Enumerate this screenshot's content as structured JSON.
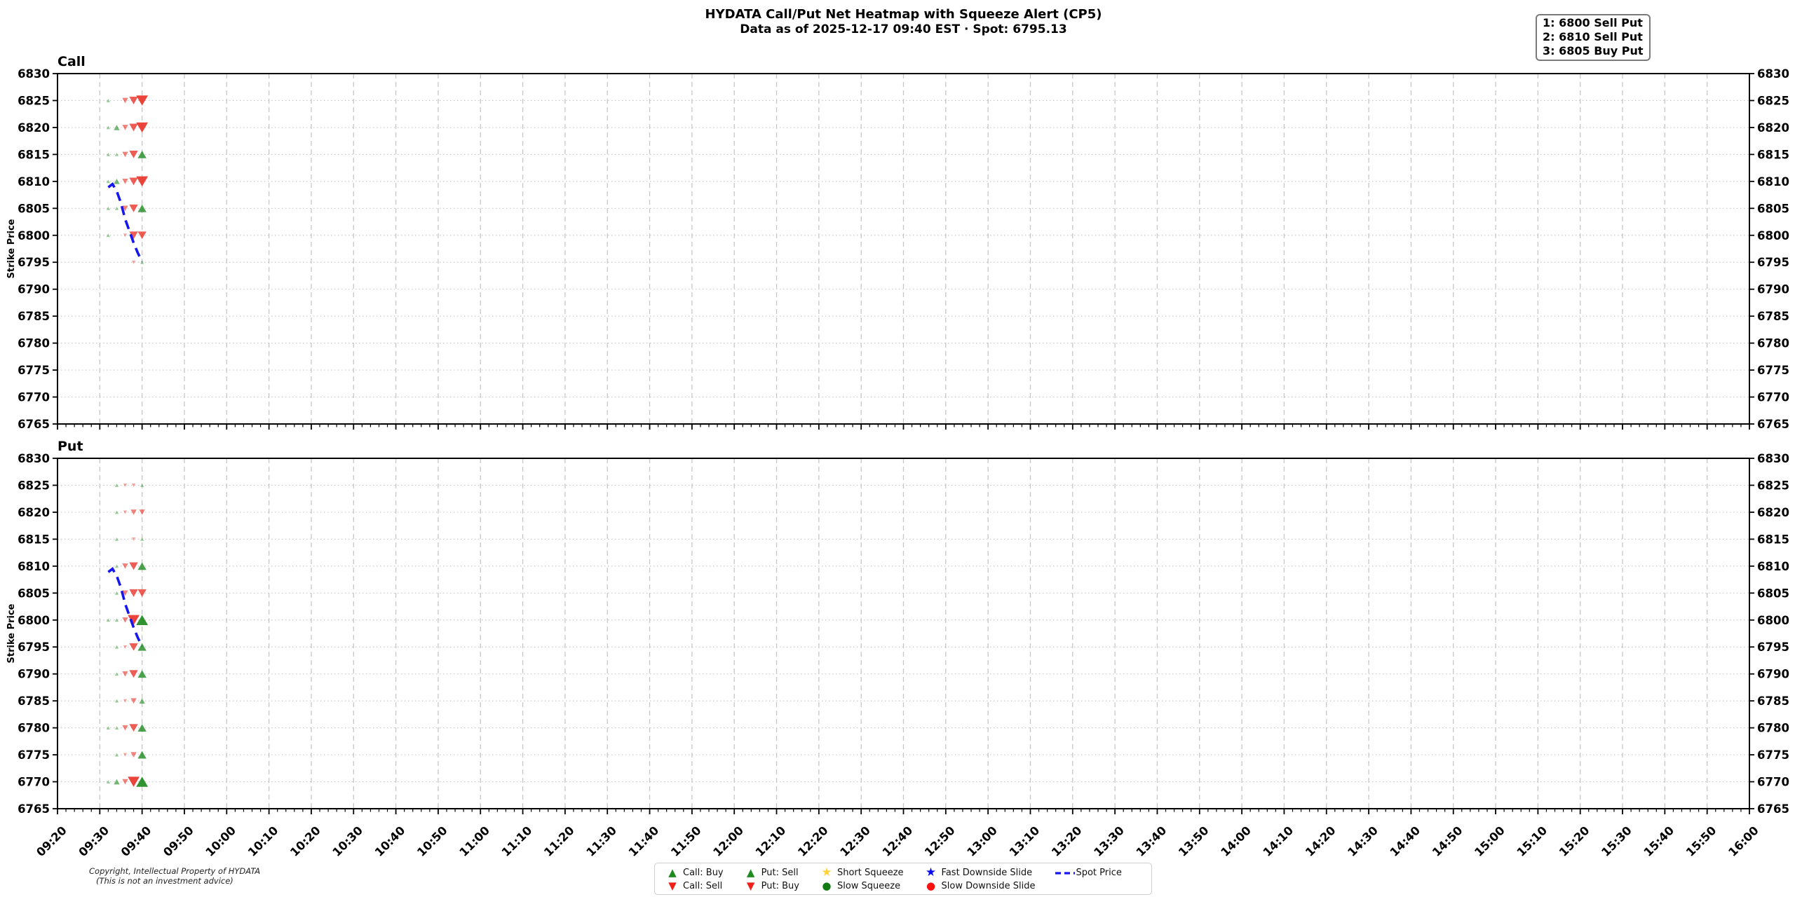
{
  "header": {
    "title": "HYDATA Call/Put Net Heatmap with Squeeze Alert (CP5)",
    "subtitle": "Data as of 2025-12-17 09:40 EST · Spot: 6795.13"
  },
  "annotation_box": {
    "lines": [
      "1: 6800 Sell Put",
      "2: 6810 Sell Put",
      "3: 6805 Buy Put"
    ]
  },
  "footer": {
    "copyright_line1": "Copyright, Intellectual Property of HYDATA",
    "copyright_line2": "(This is not an investment advice)"
  },
  "colors": {
    "green": "#1f8b1f",
    "red": "#e8342a",
    "spot_blue": "#1617ee",
    "gold": "#ffd43b",
    "dark_green": "#127a12",
    "bright_red": "#fb0f0f",
    "bright_blue": "#0a0af0",
    "grid_dash": "#c7c7c7",
    "grid_dot": "#c9c9c9",
    "spine": "#000000"
  },
  "legend": {
    "columns": [
      {
        "items": [
          {
            "marker": "triangle-up",
            "color": "#1f8b1f",
            "label": "Call: Buy"
          },
          {
            "marker": "triangle-down",
            "color": "#ee2019",
            "label": "Call: Sell"
          }
        ]
      },
      {
        "items": [
          {
            "marker": "triangle-up",
            "color": "#1f8b1f",
            "label": "Put: Sell"
          },
          {
            "marker": "triangle-down",
            "color": "#ee2019",
            "label": "Put: Buy"
          }
        ]
      },
      {
        "items": [
          {
            "marker": "star",
            "color": "#ffd43b",
            "label": "Short Squeeze"
          },
          {
            "marker": "circle",
            "color": "#127a12",
            "label": "Slow Squeeze"
          }
        ]
      },
      {
        "items": [
          {
            "marker": "star",
            "color": "#0a0af0",
            "label": "Fast Downside Slide"
          },
          {
            "marker": "circle",
            "color": "#fb0f0f",
            "label": "Slow Downside Slide"
          }
        ]
      },
      {
        "items": [
          {
            "marker": "dashed-line",
            "color": "#1617ee",
            "label": "Spot Price"
          }
        ]
      }
    ]
  },
  "chart_data": [
    {
      "type": "scatter",
      "title": "Call",
      "ylabel": "Strike Price",
      "ylim": [
        6765,
        6830
      ],
      "y_ticks": [
        6765,
        6770,
        6775,
        6780,
        6785,
        6790,
        6795,
        6800,
        6805,
        6810,
        6815,
        6820,
        6825,
        6830
      ],
      "x_range": [
        "09:20",
        "16:00"
      ],
      "x_tick_interval_min": 10,
      "x_minor_interval_min": 2,
      "grid": true,
      "x_ticks": [
        "09:20",
        "09:30",
        "09:40",
        "09:50",
        "10:00",
        "10:10",
        "10:20",
        "10:30",
        "10:40",
        "10:50",
        "11:00",
        "11:10",
        "11:20",
        "11:30",
        "11:40",
        "11:50",
        "12:00",
        "12:10",
        "12:20",
        "12:30",
        "12:40",
        "12:50",
        "13:00",
        "13:10",
        "13:20",
        "13:30",
        "13:40",
        "13:50",
        "14:00",
        "14:10",
        "14:20",
        "14:30",
        "14:40",
        "14:50",
        "15:00",
        "15:10",
        "15:20",
        "15:30",
        "15:40",
        "15:50",
        "16:00"
      ],
      "series": [
        {
          "name": "Call: Buy",
          "type": "scatter",
          "marker": "triangle-up",
          "color": "#1f8b1f",
          "points": [
            {
              "t": "09:32",
              "strike": 6825,
              "size": 1
            },
            {
              "t": "09:32",
              "strike": 6820,
              "size": 1
            },
            {
              "t": "09:34",
              "strike": 6820,
              "size": 2
            },
            {
              "t": "09:32",
              "strike": 6815,
              "size": 1
            },
            {
              "t": "09:34",
              "strike": 6815,
              "size": 1
            },
            {
              "t": "09:40",
              "strike": 6815,
              "size": 3
            },
            {
              "t": "09:32",
              "strike": 6810,
              "size": 1
            },
            {
              "t": "09:34",
              "strike": 6810,
              "size": 2
            },
            {
              "t": "09:32",
              "strike": 6805,
              "size": 1
            },
            {
              "t": "09:34",
              "strike": 6805,
              "size": 1
            },
            {
              "t": "09:40",
              "strike": 6805,
              "size": 3
            },
            {
              "t": "09:32",
              "strike": 6800,
              "size": 1
            },
            {
              "t": "09:40",
              "strike": 6795,
              "size": 1
            }
          ]
        },
        {
          "name": "Call: Sell",
          "type": "scatter",
          "marker": "triangle-down",
          "color": "#e8342a",
          "points": [
            {
              "t": "09:36",
              "strike": 6825,
              "size": 2
            },
            {
              "t": "09:38",
              "strike": 6825,
              "size": 3
            },
            {
              "t": "09:40",
              "strike": 6825,
              "size": 4
            },
            {
              "t": "09:36",
              "strike": 6820,
              "size": 2
            },
            {
              "t": "09:38",
              "strike": 6820,
              "size": 3
            },
            {
              "t": "09:40",
              "strike": 6820,
              "size": 4
            },
            {
              "t": "09:36",
              "strike": 6815,
              "size": 2
            },
            {
              "t": "09:38",
              "strike": 6815,
              "size": 3
            },
            {
              "t": "09:36",
              "strike": 6810,
              "size": 2
            },
            {
              "t": "09:38",
              "strike": 6810,
              "size": 3
            },
            {
              "t": "09:40",
              "strike": 6810,
              "size": 4
            },
            {
              "t": "09:36",
              "strike": 6805,
              "size": 2
            },
            {
              "t": "09:38",
              "strike": 6805,
              "size": 3
            },
            {
              "t": "09:36",
              "strike": 6800,
              "size": 1
            },
            {
              "t": "09:38",
              "strike": 6800,
              "size": 3
            },
            {
              "t": "09:40",
              "strike": 6800,
              "size": 3
            },
            {
              "t": "09:38",
              "strike": 6795,
              "size": 1
            }
          ]
        },
        {
          "name": "Spot Price",
          "type": "line",
          "dashed": true,
          "color": "#1617ee",
          "points": [
            {
              "t": "09:32",
              "price": 6808.9
            },
            {
              "t": "09:33",
              "price": 6809.5
            },
            {
              "t": "09:34",
              "price": 6808.2
            },
            {
              "t": "09:35",
              "price": 6806.0
            },
            {
              "t": "09:36",
              "price": 6803.0
            },
            {
              "t": "09:37",
              "price": 6800.8
            },
            {
              "t": "09:38",
              "price": 6798.6
            },
            {
              "t": "09:39",
              "price": 6796.7
            },
            {
              "t": "09:40",
              "price": 6795.13
            }
          ]
        }
      ]
    },
    {
      "type": "scatter",
      "title": "Put",
      "ylabel": "Strike Price",
      "ylim": [
        6765,
        6830
      ],
      "y_ticks": [
        6765,
        6770,
        6775,
        6780,
        6785,
        6790,
        6795,
        6800,
        6805,
        6810,
        6815,
        6820,
        6825,
        6830
      ],
      "x_range": [
        "09:20",
        "16:00"
      ],
      "x_tick_interval_min": 10,
      "x_minor_interval_min": 2,
      "grid": true,
      "x_ticks": [
        "09:20",
        "09:30",
        "09:40",
        "09:50",
        "10:00",
        "10:10",
        "10:20",
        "10:30",
        "10:40",
        "10:50",
        "11:00",
        "11:10",
        "11:20",
        "11:30",
        "11:40",
        "11:50",
        "12:00",
        "12:10",
        "12:20",
        "12:30",
        "12:40",
        "12:50",
        "13:00",
        "13:10",
        "13:20",
        "13:30",
        "13:40",
        "13:50",
        "14:00",
        "14:10",
        "14:20",
        "14:30",
        "14:40",
        "14:50",
        "15:00",
        "15:10",
        "15:20",
        "15:30",
        "15:40",
        "15:50",
        "16:00"
      ],
      "series": [
        {
          "name": "Put: Sell",
          "type": "scatter",
          "marker": "triangle-up",
          "color": "#1f8b1f",
          "points": [
            {
              "t": "09:34",
              "strike": 6825,
              "size": 1
            },
            {
              "t": "09:40",
              "strike": 6825,
              "size": 1
            },
            {
              "t": "09:34",
              "strike": 6820,
              "size": 1
            },
            {
              "t": "09:34",
              "strike": 6815,
              "size": 1
            },
            {
              "t": "09:40",
              "strike": 6815,
              "size": 1
            },
            {
              "t": "09:34",
              "strike": 6810,
              "size": 1
            },
            {
              "t": "09:40",
              "strike": 6810,
              "size": 3
            },
            {
              "t": "09:34",
              "strike": 6805,
              "size": 1
            },
            {
              "t": "09:32",
              "strike": 6800,
              "size": 1
            },
            {
              "t": "09:34",
              "strike": 6800,
              "size": 1
            },
            {
              "t": "09:40",
              "strike": 6800,
              "size": 4
            },
            {
              "t": "09:34",
              "strike": 6795,
              "size": 1
            },
            {
              "t": "09:40",
              "strike": 6795,
              "size": 3
            },
            {
              "t": "09:34",
              "strike": 6790,
              "size": 1
            },
            {
              "t": "09:40",
              "strike": 6790,
              "size": 3
            },
            {
              "t": "09:34",
              "strike": 6785,
              "size": 1
            },
            {
              "t": "09:40",
              "strike": 6785,
              "size": 2
            },
            {
              "t": "09:32",
              "strike": 6780,
              "size": 1
            },
            {
              "t": "09:34",
              "strike": 6780,
              "size": 1
            },
            {
              "t": "09:40",
              "strike": 6780,
              "size": 3
            },
            {
              "t": "09:34",
              "strike": 6775,
              "size": 1
            },
            {
              "t": "09:40",
              "strike": 6775,
              "size": 3
            },
            {
              "t": "09:32",
              "strike": 6770,
              "size": 1
            },
            {
              "t": "09:34",
              "strike": 6770,
              "size": 2
            },
            {
              "t": "09:40",
              "strike": 6770,
              "size": 4
            }
          ]
        },
        {
          "name": "Put: Buy",
          "type": "scatter",
          "marker": "triangle-down",
          "color": "#e8342a",
          "points": [
            {
              "t": "09:36",
              "strike": 6825,
              "size": 1
            },
            {
              "t": "09:38",
              "strike": 6825,
              "size": 1
            },
            {
              "t": "09:36",
              "strike": 6820,
              "size": 1
            },
            {
              "t": "09:38",
              "strike": 6820,
              "size": 2
            },
            {
              "t": "09:40",
              "strike": 6820,
              "size": 2
            },
            {
              "t": "09:38",
              "strike": 6815,
              "size": 1
            },
            {
              "t": "09:36",
              "strike": 6810,
              "size": 2
            },
            {
              "t": "09:38",
              "strike": 6810,
              "size": 3
            },
            {
              "t": "09:36",
              "strike": 6805,
              "size": 2
            },
            {
              "t": "09:38",
              "strike": 6805,
              "size": 3
            },
            {
              "t": "09:40",
              "strike": 6805,
              "size": 3
            },
            {
              "t": "09:36",
              "strike": 6800,
              "size": 2
            },
            {
              "t": "09:38",
              "strike": 6800,
              "size": 4
            },
            {
              "t": "09:36",
              "strike": 6795,
              "size": 1
            },
            {
              "t": "09:38",
              "strike": 6795,
              "size": 3
            },
            {
              "t": "09:36",
              "strike": 6790,
              "size": 2
            },
            {
              "t": "09:38",
              "strike": 6790,
              "size": 3
            },
            {
              "t": "09:36",
              "strike": 6785,
              "size": 1
            },
            {
              "t": "09:38",
              "strike": 6785,
              "size": 2
            },
            {
              "t": "09:36",
              "strike": 6780,
              "size": 2
            },
            {
              "t": "09:38",
              "strike": 6780,
              "size": 3
            },
            {
              "t": "09:36",
              "strike": 6775,
              "size": 1
            },
            {
              "t": "09:38",
              "strike": 6775,
              "size": 2
            },
            {
              "t": "09:36",
              "strike": 6770,
              "size": 2
            },
            {
              "t": "09:38",
              "strike": 6770,
              "size": 4
            }
          ]
        },
        {
          "name": "Spot Price",
          "type": "line",
          "dashed": true,
          "color": "#1617ee",
          "points": [
            {
              "t": "09:32",
              "price": 6808.9
            },
            {
              "t": "09:33",
              "price": 6809.5
            },
            {
              "t": "09:34",
              "price": 6808.2
            },
            {
              "t": "09:35",
              "price": 6806.0
            },
            {
              "t": "09:36",
              "price": 6803.0
            },
            {
              "t": "09:37",
              "price": 6800.8
            },
            {
              "t": "09:38",
              "price": 6798.6
            },
            {
              "t": "09:39",
              "price": 6796.7
            },
            {
              "t": "09:40",
              "price": 6795.13
            }
          ]
        }
      ]
    }
  ]
}
